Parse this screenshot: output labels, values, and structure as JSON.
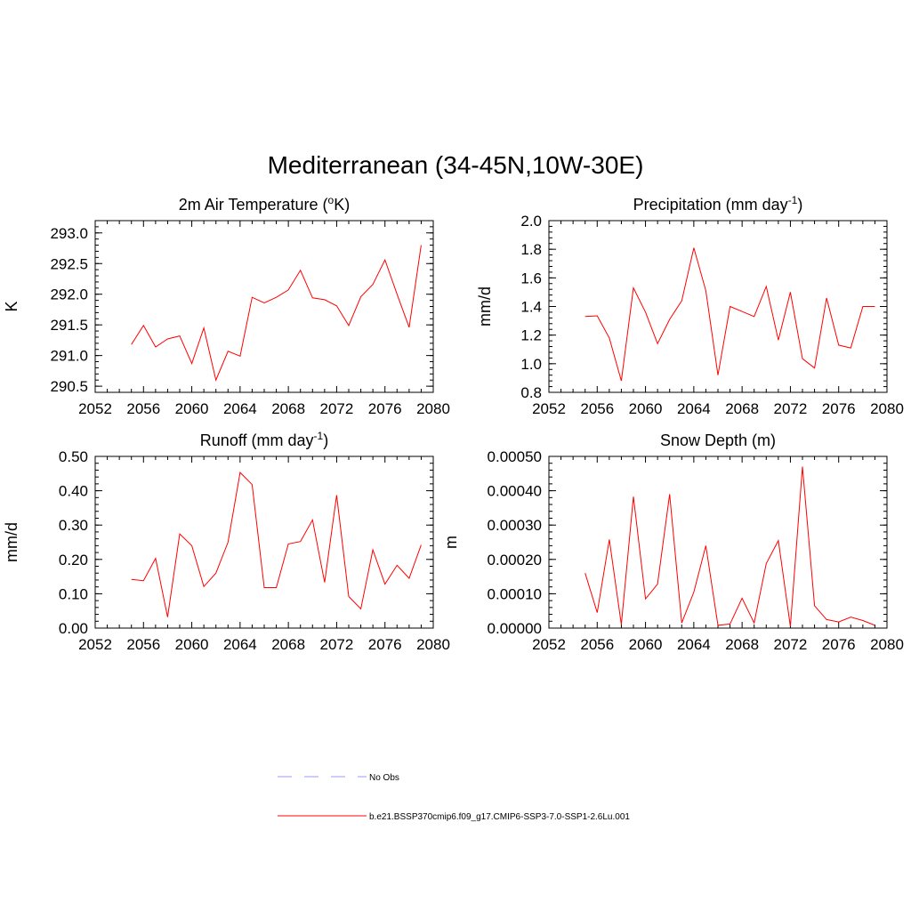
{
  "figure_title": "Mediterranean (34-45N,10W-30E)",
  "colors": {
    "model_line": "#ff0000",
    "obs_line": "#9999ff",
    "axis": "#000000"
  },
  "legend": {
    "entries": [
      {
        "label": "No Obs",
        "style": "dashed",
        "color": "#9999ff"
      },
      {
        "label": "b.e21.BSSP370cmip6.f09_g17.CMIP6-SSP3-7.0-SSP1-2.6Lu.001",
        "style": "solid",
        "color": "#ff0000"
      }
    ]
  },
  "chart_data": [
    {
      "type": "line",
      "title": "2m Air Temperature (°K)",
      "title_main": "2m Air Temperature (",
      "title_sup": "o",
      "title_end": "K)",
      "ylabel": "K",
      "xlim": [
        2052,
        2080
      ],
      "ylim": [
        290.4,
        293.2
      ],
      "xticks": [
        2052,
        2056,
        2060,
        2064,
        2068,
        2072,
        2076,
        2080
      ],
      "xtick_labels": [
        "2052",
        "2056",
        "2060",
        "2064",
        "2068",
        "2072",
        "2076",
        "2080"
      ],
      "yticks": [
        290.5,
        291.0,
        291.5,
        292.0,
        292.5,
        293.0
      ],
      "ytick_labels": [
        "290.5",
        "291.0",
        "291.5",
        "292.0",
        "292.5",
        "293.0"
      ],
      "yminor": 0.1,
      "x": [
        2055,
        2056,
        2057,
        2058,
        2059,
        2060,
        2061,
        2062,
        2063,
        2064,
        2065,
        2066,
        2067,
        2068,
        2069,
        2070,
        2071,
        2072,
        2073,
        2074,
        2075,
        2076,
        2077,
        2078,
        2079
      ],
      "series": [
        {
          "color": "#ff0000",
          "values": [
            291.18,
            291.49,
            291.14,
            291.27,
            291.32,
            290.87,
            291.45,
            290.6,
            291.07,
            290.99,
            291.95,
            291.86,
            291.95,
            292.07,
            292.39,
            291.94,
            291.91,
            291.81,
            291.49,
            291.96,
            292.16,
            292.56,
            292.0,
            291.46,
            292.8
          ]
        }
      ]
    },
    {
      "type": "line",
      "title": "Precipitation (mm day-1)",
      "title_main": "Precipitation (mm day",
      "title_sup": "-1",
      "title_end": ")",
      "ylabel": "mm/d",
      "xlim": [
        2052,
        2080
      ],
      "ylim": [
        0.8,
        2.0
      ],
      "xticks": [
        2052,
        2056,
        2060,
        2064,
        2068,
        2072,
        2076,
        2080
      ],
      "xtick_labels": [
        "2052",
        "2056",
        "2060",
        "2064",
        "2068",
        "2072",
        "2076",
        "2080"
      ],
      "yticks": [
        0.8,
        1.0,
        1.2,
        1.4,
        1.6,
        1.8,
        2.0
      ],
      "ytick_labels": [
        "0.8",
        "1.0",
        "1.2",
        "1.4",
        "1.6",
        "1.8",
        "2.0"
      ],
      "yminor": 0.04,
      "x": [
        2055,
        2056,
        2057,
        2058,
        2059,
        2060,
        2061,
        2062,
        2063,
        2064,
        2065,
        2066,
        2067,
        2068,
        2069,
        2070,
        2071,
        2072,
        2073,
        2074,
        2075,
        2076,
        2077,
        2078,
        2079
      ],
      "series": [
        {
          "color": "#ff0000",
          "values": [
            1.33,
            1.335,
            1.18,
            0.88,
            1.53,
            1.36,
            1.14,
            1.31,
            1.44,
            1.81,
            1.51,
            0.92,
            1.4,
            1.365,
            1.33,
            1.54,
            1.165,
            1.5,
            1.035,
            0.97,
            1.46,
            1.13,
            1.11,
            1.4,
            1.4
          ]
        }
      ]
    },
    {
      "type": "line",
      "title": "Runoff (mm day-1)",
      "title_main": "Runoff (mm day",
      "title_sup": "-1",
      "title_end": ")",
      "ylabel": "mm/d",
      "xlim": [
        2052,
        2080
      ],
      "ylim": [
        0.0,
        0.5
      ],
      "xticks": [
        2052,
        2056,
        2060,
        2064,
        2068,
        2072,
        2076,
        2080
      ],
      "xtick_labels": [
        "2052",
        "2056",
        "2060",
        "2064",
        "2068",
        "2072",
        "2076",
        "2080"
      ],
      "yticks": [
        0.0,
        0.1,
        0.2,
        0.3,
        0.4,
        0.5
      ],
      "ytick_labels": [
        "0.00",
        "0.10",
        "0.20",
        "0.30",
        "0.40",
        "0.50"
      ],
      "yminor": 0.02,
      "x": [
        2055,
        2056,
        2057,
        2058,
        2059,
        2060,
        2061,
        2062,
        2063,
        2064,
        2065,
        2066,
        2067,
        2068,
        2069,
        2070,
        2071,
        2072,
        2073,
        2074,
        2075,
        2076,
        2077,
        2078,
        2079
      ],
      "series": [
        {
          "color": "#ff0000",
          "values": [
            0.142,
            0.138,
            0.203,
            0.032,
            0.274,
            0.24,
            0.121,
            0.16,
            0.25,
            0.453,
            0.418,
            0.118,
            0.118,
            0.245,
            0.252,
            0.315,
            0.133,
            0.387,
            0.092,
            0.056,
            0.228,
            0.128,
            0.183,
            0.145,
            0.242
          ]
        }
      ]
    },
    {
      "type": "line",
      "title": "Snow Depth (m)",
      "title_main": "Snow Depth (m)",
      "title_sup": "",
      "title_end": "",
      "ylabel": "m",
      "xlim": [
        2052,
        2080
      ],
      "ylim": [
        0.0,
        0.0005
      ],
      "xticks": [
        2052,
        2056,
        2060,
        2064,
        2068,
        2072,
        2076,
        2080
      ],
      "xtick_labels": [
        "2052",
        "2056",
        "2060",
        "2064",
        "2068",
        "2072",
        "2076",
        "2080"
      ],
      "yticks": [
        0.0,
        0.0001,
        0.0002,
        0.0003,
        0.0004,
        0.0005
      ],
      "ytick_labels": [
        "0.00000",
        "0.00010",
        "0.00020",
        "0.00030",
        "0.00040",
        "0.00050"
      ],
      "yminor": 2e-05,
      "x": [
        2055,
        2056,
        2057,
        2058,
        2059,
        2060,
        2061,
        2062,
        2063,
        2064,
        2065,
        2066,
        2067,
        2068,
        2069,
        2070,
        2071,
        2072,
        2073,
        2074,
        2075,
        2076,
        2077,
        2078,
        2079
      ],
      "series": [
        {
          "color": "#ff0000",
          "values": [
            0.00016,
            4.5e-05,
            0.000258,
            1e-05,
            0.000383,
            8.5e-05,
            0.000128,
            0.00039,
            1.5e-05,
            0.000105,
            0.00024,
            8e-06,
            1.2e-05,
            8.7e-05,
            1.5e-05,
            0.000188,
            0.000255,
            5e-06,
            0.00047,
            6.5e-05,
            2.5e-05,
            1.8e-05,
            3.2e-05,
            2.2e-05,
            8e-06
          ]
        }
      ]
    }
  ]
}
